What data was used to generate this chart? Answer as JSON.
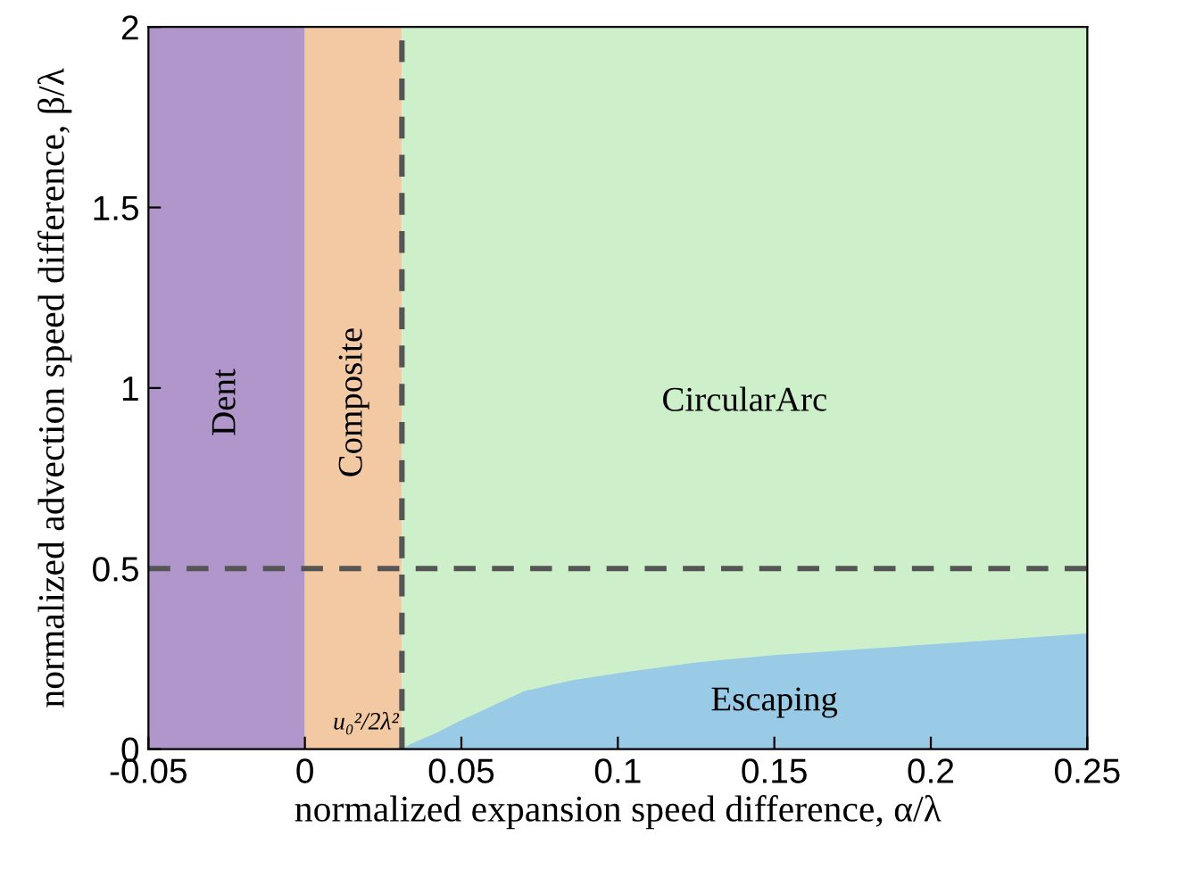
{
  "chart_data": {
    "type": "area",
    "xlabel": "normalized expansion speed difference, α/λ",
    "ylabel": "normalized advection speed difference, β/λ",
    "xlim": [
      -0.05,
      0.25
    ],
    "xticks": [
      {
        "value": -0.05,
        "label": "-0.05"
      },
      0,
      0.05,
      0.1,
      0.15,
      0.2,
      0.25
    ],
    "ylim": [
      0,
      2
    ],
    "yticks": [
      0,
      0.5,
      1,
      1.5,
      2
    ],
    "grid": false,
    "legend": false,
    "bands": [
      {
        "axis": "x",
        "from": -0.05,
        "to": 0,
        "label": "Dent",
        "color": "#b096cb"
      },
      {
        "axis": "x",
        "from": 0,
        "to": 0.031,
        "label": "Composite",
        "color": "#f2c9a2"
      },
      {
        "axis": "x",
        "from": 0.031,
        "to": 0.25,
        "label": "CircularArc",
        "color": "#cdf0cb"
      }
    ],
    "series": [
      {
        "name": "Escaping",
        "color": "#99cae6",
        "x": [
          0.031,
          0.034,
          0.038,
          0.042,
          0.05,
          0.06,
          0.07,
          0.085,
          0.1,
          0.125,
          0.15,
          0.175,
          0.2,
          0.225,
          0.25
        ],
        "values": [
          0,
          0.015,
          0.03,
          0.045,
          0.08,
          0.12,
          0.16,
          0.19,
          0.21,
          0.24,
          0.26,
          0.275,
          0.29,
          0.305,
          0.32
        ]
      }
    ],
    "ref_lines": [
      {
        "axis": "x",
        "value": 0.031,
        "label": "u₀²/2λ²",
        "color": "#555555",
        "line_style": "dashed"
      },
      {
        "axis": "y",
        "value": 0.5,
        "color": "#555555",
        "line_style": "dashed"
      }
    ]
  }
}
